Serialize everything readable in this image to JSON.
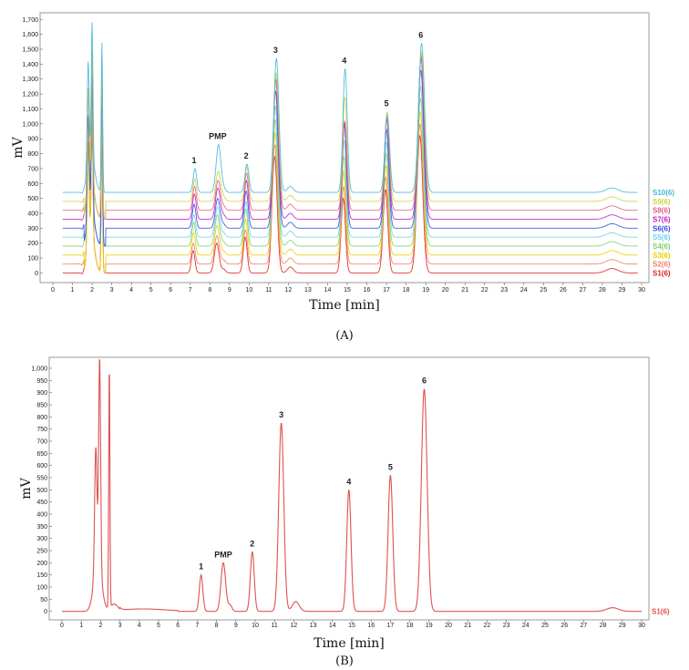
{
  "chart_data": [
    {
      "type": "line",
      "panel_label": "(A)",
      "xlabel": "Time [min]",
      "ylabel": "mV",
      "xlim": [
        0,
        30
      ],
      "ylim": [
        -40,
        1720
      ],
      "xticks": [
        0,
        1,
        2,
        3,
        4,
        5,
        6,
        7,
        8,
        9,
        10,
        11,
        12,
        13,
        14,
        15,
        16,
        17,
        18,
        19,
        20,
        21,
        22,
        23,
        24,
        25,
        26,
        27,
        28,
        29,
        30
      ],
      "yticks": [
        0,
        100,
        200,
        300,
        400,
        500,
        600,
        700,
        800,
        900,
        1000,
        1100,
        1200,
        1300,
        1400,
        1500,
        1600,
        1700
      ],
      "ytick_labels": [
        "0",
        "100",
        "200",
        "300",
        "400",
        "500",
        "600",
        "700",
        "800",
        "900",
        "1,000",
        "1,100",
        "1,200",
        "1,300",
        "1,400",
        "1,500",
        "1,600",
        "1,700"
      ],
      "peaks": [
        {
          "label": "1",
          "x": 7.2
        },
        {
          "label": "PMP",
          "x": 8.4
        },
        {
          "label": "2",
          "x": 9.85
        },
        {
          "label": "3",
          "x": 11.35
        },
        {
          "label": "4",
          "x": 14.85
        },
        {
          "label": "5",
          "x": 17.0
        },
        {
          "label": "6",
          "x": 18.75
        }
      ],
      "series": [
        {
          "name": "S1(6)",
          "color": "#e02020",
          "baseline": 0,
          "heights": [
            150,
            200,
            240,
            780,
            500,
            560,
            920
          ]
        },
        {
          "name": "S2(6)",
          "color": "#f08060",
          "baseline": 60,
          "heights": [
            140,
            190,
            230,
            800,
            520,
            580,
            940
          ]
        },
        {
          "name": "S3(6)",
          "color": "#e8d000",
          "baseline": 120,
          "heights": [
            150,
            200,
            240,
            820,
            560,
            600,
            960
          ]
        },
        {
          "name": "S4(6)",
          "color": "#80d070",
          "baseline": 180,
          "heights": [
            160,
            210,
            250,
            850,
            600,
            620,
            990
          ]
        },
        {
          "name": "S5(6)",
          "color": "#70d0e8",
          "baseline": 240,
          "heights": [
            150,
            200,
            240,
            880,
            650,
            640,
            1010
          ]
        },
        {
          "name": "S6(6)",
          "color": "#3050e0",
          "baseline": 300,
          "heights": [
            160,
            200,
            250,
            920,
            700,
            660,
            1060
          ]
        },
        {
          "name": "S7(6)",
          "color": "#c020c0",
          "baseline": 360,
          "heights": [
            170,
            210,
            260,
            940,
            650,
            680,
            1080
          ]
        },
        {
          "name": "S8(6)",
          "color": "#e06080",
          "baseline": 420,
          "heights": [
            160,
            200,
            250,
            880,
            600,
            620,
            1040
          ]
        },
        {
          "name": "S9(6)",
          "color": "#d0d040",
          "baseline": 480,
          "heights": [
            150,
            200,
            230,
            860,
            700,
            600,
            1000
          ]
        },
        {
          "name": "S10(6)",
          "color": "#40b8d8",
          "baseline": 540,
          "heights": [
            160,
            320,
            190,
            900,
            830,
            520,
            1000
          ]
        }
      ]
    },
    {
      "type": "line",
      "panel_label": "(B)",
      "xlabel": "Time [min]",
      "ylabel": "mV",
      "xlim": [
        0,
        30
      ],
      "ylim": [
        -20,
        1030
      ],
      "xticks": [
        0,
        1,
        2,
        3,
        4,
        5,
        6,
        7,
        8,
        9,
        10,
        11,
        12,
        13,
        14,
        15,
        16,
        17,
        18,
        19,
        20,
        21,
        22,
        23,
        24,
        25,
        26,
        27,
        28,
        29,
        30
      ],
      "yticks": [
        0,
        50,
        100,
        150,
        200,
        250,
        300,
        350,
        400,
        450,
        500,
        550,
        600,
        650,
        700,
        750,
        800,
        850,
        900,
        950,
        1000
      ],
      "ytick_labels": [
        "0",
        "50",
        "100",
        "150",
        "200",
        "250",
        "300",
        "350",
        "400",
        "450",
        "500",
        "550",
        "600",
        "650",
        "700",
        "750",
        "800",
        "850",
        "900",
        "950",
        "1,000"
      ],
      "peaks": [
        {
          "label": "1",
          "x": 7.2,
          "y": 150
        },
        {
          "label": "PMP",
          "x": 8.35,
          "y": 200
        },
        {
          "label": "2",
          "x": 9.85,
          "y": 245
        },
        {
          "label": "3",
          "x": 11.35,
          "y": 775
        },
        {
          "label": "4",
          "x": 14.85,
          "y": 500
        },
        {
          "label": "5",
          "x": 17.0,
          "y": 560
        },
        {
          "label": "6",
          "x": 18.75,
          "y": 915
        }
      ],
      "series": [
        {
          "name": "S1(6)",
          "color": "#e05050"
        }
      ]
    }
  ]
}
